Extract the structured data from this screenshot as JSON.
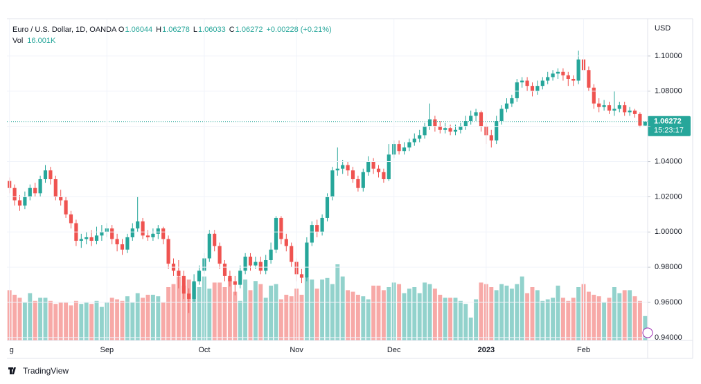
{
  "chart_data": {
    "type": "candlestick",
    "title": "Euro / U.S. Dollar, 1D, OANDA",
    "legend_labels": {
      "open": "O",
      "high": "H",
      "low": "L",
      "close": "C",
      "volume": "Vol"
    },
    "change_label": "+0.00228 (+0.21%)",
    "volume_label": "16.001K",
    "currency": "USD",
    "countdown": "15:23:17",
    "footer": "TradingView",
    "up_color": "#26a69a",
    "down_color": "#ef5350",
    "grid": true,
    "ylim": [
      0.9384,
      1.1208
    ],
    "yticks": [
      {
        "value": 0.94,
        "label": "0.94000"
      },
      {
        "value": 0.96,
        "label": "0.96000"
      },
      {
        "value": 0.98,
        "label": "0.98000"
      },
      {
        "value": 1.0,
        "label": "1.00000"
      },
      {
        "value": 1.02,
        "label": "1.02000"
      },
      {
        "value": 1.04,
        "label": "1.04000"
      },
      {
        "value": 1.06,
        "label": "1.06000"
      },
      {
        "value": 1.08,
        "label": "1.08000"
      },
      {
        "value": 1.1,
        "label": "1.10000"
      }
    ],
    "categories": [
      "g",
      null,
      null,
      null,
      null,
      null,
      null,
      null,
      null,
      null,
      null,
      null,
      null,
      null,
      null,
      null,
      null,
      null,
      null,
      "Sep",
      null,
      null,
      null,
      null,
      null,
      null,
      null,
      null,
      null,
      null,
      null,
      null,
      null,
      null,
      null,
      null,
      null,
      null,
      "Oct",
      null,
      null,
      null,
      null,
      null,
      null,
      null,
      null,
      null,
      null,
      null,
      null,
      null,
      null,
      null,
      null,
      null,
      "Nov",
      null,
      null,
      null,
      null,
      null,
      null,
      null,
      null,
      null,
      null,
      null,
      null,
      null,
      null,
      null,
      null,
      null,
      null,
      "Dec",
      null,
      null,
      null,
      null,
      null,
      null,
      null,
      null,
      null,
      null,
      null,
      null,
      null,
      null,
      null,
      null,
      null,
      "2023",
      null,
      null,
      null,
      null,
      null,
      null,
      null,
      null,
      null,
      null,
      null,
      null,
      null,
      null,
      null,
      null,
      null,
      null,
      "Feb",
      null,
      null,
      null,
      null,
      null,
      null,
      null,
      null,
      null,
      null,
      null,
      null
    ],
    "open": [
      1.029,
      1.025,
      1.018,
      1.015,
      1.02,
      1.025,
      1.022,
      1.03,
      1.035,
      1.03,
      1.02,
      1.018,
      1.01,
      1.005,
      0.995,
      0.996,
      0.997,
      0.995,
      0.998,
      1.0,
      1.002,
      0.996,
      0.993,
      0.99,
      0.997,
      1.002,
      1.006,
      0.998,
      0.997,
      0.999,
      1.002,
      0.996,
      0.982,
      0.978,
      0.975,
      0.965,
      0.962,
      0.972,
      0.978,
      0.985,
      0.999,
      0.992,
      0.982,
      0.975,
      0.972,
      0.97,
      0.978,
      0.986,
      0.981,
      0.983,
      0.978,
      0.984,
      0.99,
      1.008,
      0.996,
      0.992,
      0.983,
      0.976,
      0.974,
      0.994,
      1.004,
      1.0,
      1.008,
      1.02,
      1.035,
      1.036,
      1.038,
      1.035,
      1.03,
      1.025,
      1.034,
      1.04,
      1.036,
      1.034,
      1.03,
      1.044,
      1.05,
      1.046,
      1.048,
      1.051,
      1.053,
      1.055,
      1.06,
      1.064,
      1.06,
      1.058,
      1.059,
      1.057,
      1.058,
      1.06,
      1.063,
      1.066,
      1.068,
      1.06,
      1.055,
      1.052,
      1.063,
      1.07,
      1.073,
      1.076,
      1.085,
      1.086,
      1.083,
      1.08,
      1.083,
      1.086,
      1.088,
      1.09,
      1.091,
      1.089,
      1.087,
      1.086,
      1.098,
      1.092,
      1.082,
      1.073,
      1.071,
      1.072,
      1.069,
      1.07,
      1.072,
      1.068,
      1.069,
      1.067,
      1.06044
    ],
    "high": [
      1.031,
      1.027,
      1.021,
      1.023,
      1.027,
      1.028,
      1.032,
      1.038,
      1.037,
      1.032,
      1.024,
      1.02,
      1.012,
      1.007,
      0.999,
      1.0,
      1.001,
      1.003,
      1.004,
      1.005,
      1.004,
      0.999,
      0.996,
      0.999,
      1.005,
      1.02,
      1.008,
      1.001,
      1.002,
      1.004,
      1.003,
      0.998,
      0.985,
      0.984,
      0.978,
      0.968,
      0.976,
      0.981,
      0.988,
      1.001,
      1.001,
      0.994,
      0.984,
      0.978,
      0.975,
      0.981,
      0.988,
      0.988,
      0.986,
      0.986,
      0.987,
      0.994,
      1.009,
      1.009,
      0.999,
      0.994,
      0.985,
      0.979,
      0.997,
      1.006,
      1.007,
      1.01,
      1.022,
      1.037,
      1.048,
      1.041,
      1.04,
      1.037,
      1.032,
      1.036,
      1.043,
      1.042,
      1.038,
      1.036,
      1.05,
      1.052,
      1.052,
      1.051,
      1.053,
      1.056,
      1.058,
      1.062,
      1.073,
      1.066,
      1.063,
      1.062,
      1.061,
      1.061,
      1.062,
      1.066,
      1.069,
      1.07,
      1.069,
      1.062,
      1.058,
      1.066,
      1.072,
      1.076,
      1.078,
      1.087,
      1.088,
      1.088,
      1.085,
      1.086,
      1.088,
      1.091,
      1.092,
      1.093,
      1.093,
      1.091,
      1.089,
      1.103,
      1.1,
      1.094,
      1.084,
      1.076,
      1.075,
      1.074,
      1.08,
      1.074,
      1.074,
      1.071,
      1.07,
      1.068,
      1.06278
    ],
    "low": [
      1.022,
      1.015,
      1.012,
      1.013,
      1.018,
      1.02,
      1.02,
      1.028,
      1.027,
      1.018,
      1.015,
      1.008,
      1.002,
      0.992,
      0.991,
      0.993,
      0.992,
      0.993,
      0.995,
      0.997,
      0.993,
      0.989,
      0.987,
      0.988,
      0.995,
      1.0,
      0.996,
      0.995,
      0.995,
      0.996,
      0.993,
      0.979,
      0.975,
      0.968,
      0.962,
      0.954,
      0.96,
      0.97,
      0.976,
      0.983,
      0.989,
      0.979,
      0.972,
      0.969,
      0.964,
      0.968,
      0.976,
      0.978,
      0.979,
      0.976,
      0.976,
      0.982,
      0.988,
      0.993,
      0.989,
      0.98,
      0.972,
      0.971,
      0.972,
      0.992,
      0.997,
      0.998,
      1.006,
      1.018,
      1.032,
      1.033,
      1.032,
      1.028,
      1.023,
      1.023,
      1.032,
      1.033,
      1.031,
      1.028,
      1.029,
      1.042,
      1.044,
      1.044,
      1.046,
      1.049,
      1.051,
      1.053,
      1.058,
      1.057,
      1.056,
      1.056,
      1.055,
      1.055,
      1.056,
      1.058,
      1.061,
      1.063,
      1.057,
      1.05,
      1.048,
      1.05,
      1.061,
      1.068,
      1.071,
      1.074,
      1.082,
      1.08,
      1.077,
      1.078,
      1.081,
      1.084,
      1.086,
      1.087,
      1.086,
      1.083,
      1.083,
      1.084,
      1.089,
      1.08,
      1.07,
      1.068,
      1.069,
      1.067,
      1.066,
      1.068,
      1.066,
      1.066,
      1.065,
      1.0595,
      1.06033
    ],
    "close": [
      1.025,
      1.018,
      1.015,
      1.02,
      1.025,
      1.022,
      1.03,
      1.035,
      1.03,
      1.02,
      1.018,
      1.01,
      1.005,
      0.995,
      0.996,
      0.997,
      0.995,
      0.998,
      1.0,
      1.002,
      0.996,
      0.993,
      0.99,
      0.997,
      1.002,
      1.006,
      0.998,
      0.997,
      0.999,
      1.002,
      0.996,
      0.982,
      0.978,
      0.975,
      0.965,
      0.962,
      0.972,
      0.978,
      0.985,
      0.999,
      0.992,
      0.982,
      0.975,
      0.972,
      0.97,
      0.978,
      0.986,
      0.981,
      0.983,
      0.978,
      0.984,
      0.99,
      1.008,
      0.996,
      0.992,
      0.983,
      0.976,
      0.974,
      0.994,
      1.004,
      1.0,
      1.008,
      1.02,
      1.035,
      1.036,
      1.038,
      1.035,
      1.03,
      1.025,
      1.034,
      1.04,
      1.036,
      1.034,
      1.03,
      1.044,
      1.05,
      1.046,
      1.048,
      1.051,
      1.053,
      1.055,
      1.06,
      1.064,
      1.06,
      1.058,
      1.059,
      1.057,
      1.058,
      1.06,
      1.063,
      1.066,
      1.068,
      1.06,
      1.055,
      1.052,
      1.063,
      1.07,
      1.073,
      1.076,
      1.085,
      1.086,
      1.083,
      1.08,
      1.083,
      1.086,
      1.088,
      1.09,
      1.091,
      1.089,
      1.087,
      1.086,
      1.098,
      1.092,
      1.082,
      1.073,
      1.071,
      1.072,
      1.069,
      1.07,
      1.072,
      1.068,
      1.069,
      1.067,
      1.06044,
      1.06272
    ],
    "volume": [
      33,
      30,
      28,
      25,
      31,
      26,
      28,
      28,
      26,
      24,
      25,
      25,
      23,
      26,
      24,
      25,
      24,
      26,
      22,
      25,
      28,
      27,
      26,
      29,
      25,
      31,
      28,
      30,
      30,
      29,
      25,
      35,
      37,
      42,
      36,
      40,
      38,
      35,
      42,
      34,
      38,
      38,
      35,
      41,
      32,
      26,
      40,
      33,
      39,
      37,
      28,
      36,
      37,
      27,
      30,
      29,
      34,
      30,
      41,
      40,
      34,
      40,
      41,
      37,
      50,
      42,
      33,
      32,
      30,
      29,
      27,
      36,
      36,
      33,
      35,
      38,
      37,
      31,
      34,
      35,
      31,
      38,
      37,
      34,
      30,
      28,
      28,
      28,
      26,
      24,
      15,
      27,
      38,
      37,
      35,
      33,
      37,
      36,
      34,
      37,
      42,
      31,
      35,
      33,
      26,
      27,
      28,
      36,
      28,
      26,
      28,
      35,
      37,
      32,
      30,
      29,
      25,
      28,
      35,
      31,
      33,
      33,
      29,
      26,
      16.001
    ]
  }
}
